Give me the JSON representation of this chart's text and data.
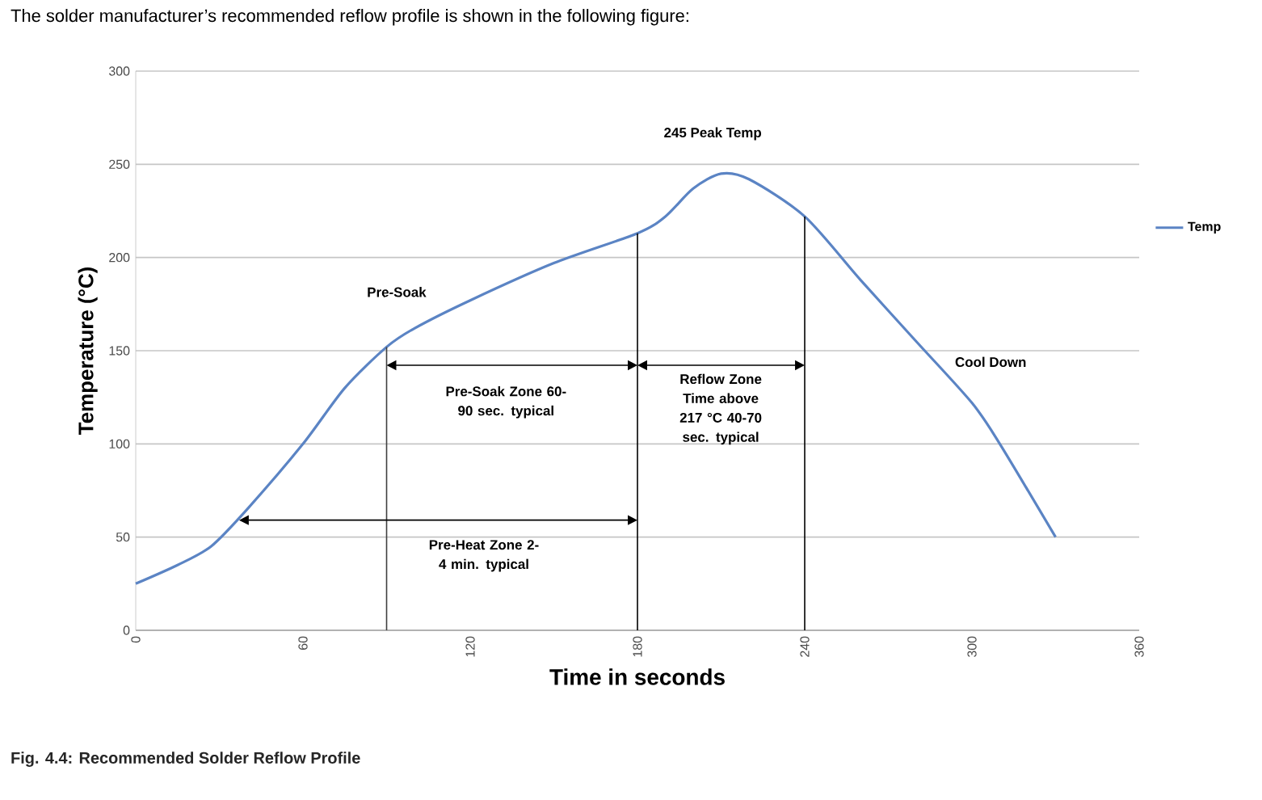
{
  "chart_data": {
    "type": "line",
    "title": "The solder manufacturer’s recommended reflow profile is shown in the following figure:",
    "xlabel": "Time in seconds",
    "ylabel": "Temperature (°C)",
    "x": [
      0,
      15,
      27,
      40,
      60,
      75,
      90,
      100,
      120,
      150,
      180,
      190,
      200,
      210,
      220,
      240,
      260,
      280,
      300,
      310,
      330
    ],
    "series": [
      {
        "name": "Temp",
        "color": "#5b84c4",
        "values": [
          25,
          35,
          45,
          65,
          100,
          130,
          152,
          162,
          177,
          197,
          213,
          222,
          237,
          245,
          242,
          222,
          188,
          155,
          122,
          100,
          50
        ]
      }
    ],
    "xlim": [
      0,
      360
    ],
    "xticks": [
      0,
      60,
      120,
      180,
      240,
      300,
      360
    ],
    "ylim": [
      0,
      300
    ],
    "yticks": [
      0,
      50,
      100,
      150,
      200,
      250,
      300
    ],
    "grid": "y",
    "legend": "right",
    "marker": "none",
    "line_style": "solid",
    "ref_lines": [
      {
        "axis": "x",
        "value": 90,
        "color": "#404040"
      },
      {
        "axis": "x",
        "value": 180,
        "color": "#000000"
      },
      {
        "axis": "x",
        "value": 240,
        "color": "#000000"
      }
    ],
    "annotations": [
      "Pre-Soak",
      "245 Peak Temp",
      "Cool Down",
      "Pre-Soak Zone 60-90 sec. typical",
      "Reflow Zone Time above 217 °C 40-70 sec. typical",
      "Pre-Heat Zone 2-4 min. typical",
      "Fig. 4.4: Recommended Solder Reflow Profile"
    ]
  }
}
